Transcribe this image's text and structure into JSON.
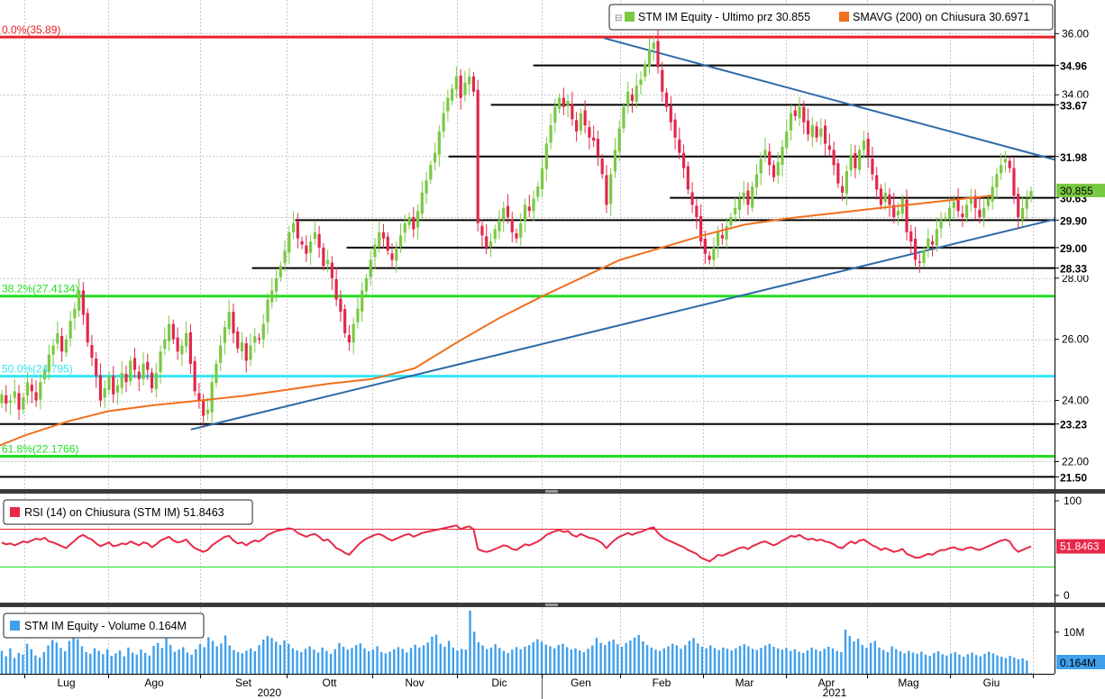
{
  "colors": {
    "up": "#7ac943",
    "down": "#e0284d",
    "sma": "#f07020",
    "trend": "#2c6aa8",
    "rsi": "#e8294a",
    "volume": "#3fa0ee",
    "fib_red": "#e8202a",
    "fib_green": "#22dd22",
    "fib_cyan": "#33e6f0",
    "grid": "#c8c8c8"
  },
  "chart_data": [
    {
      "type": "candlestick",
      "legend": [
        {
          "label": "STM IM Equity - Ultimo prz 30.855",
          "color": "#7ac943"
        },
        {
          "label": "SMAVG (200)  on Chiusura 30.6971",
          "color": "#f07020"
        }
      ],
      "ylim": [
        21.1,
        37.1
      ],
      "y_ticks": [
        22.0,
        24.0,
        26.0,
        28.0,
        30.0,
        32.0,
        34.0,
        36.0
      ],
      "last_price": 30.855,
      "last_price_label": "30.855",
      "fib_levels": [
        {
          "label": "0.0%(35.89)",
          "value": 35.89,
          "color": "#e8202a"
        },
        {
          "label": "38.2%(27.4134)",
          "value": 27.4134,
          "color": "#22dd22"
        },
        {
          "label": "50.0%(24.795)",
          "value": 24.795,
          "color": "#33e6f0"
        },
        {
          "label": "61.8%(22.1766)",
          "value": 22.1766,
          "color": "#22dd22"
        }
      ],
      "support_resistance": [
        {
          "label": "34.96",
          "value": 34.96,
          "start_month": 5.9
        },
        {
          "label": "33.67",
          "value": 33.67,
          "start_month": 5.4
        },
        {
          "label": "31.98",
          "value": 31.98,
          "start_month": 4.9
        },
        {
          "label": "30.63",
          "value": 30.63,
          "start_month": 7.6
        },
        {
          "label": "29.90",
          "value": 29.9,
          "start_month": 3.1
        },
        {
          "label": "29.00",
          "value": 29.0,
          "start_month": 3.7
        },
        {
          "label": "28.33",
          "value": 28.33,
          "start_month": 2.6
        },
        {
          "label": "23.23",
          "value": 23.23,
          "start_month": -0.5
        },
        {
          "label": "21.50",
          "value": 21.5,
          "start_month": -0.8
        }
      ],
      "trendlines": [
        {
          "points": [
            [
              1.9,
              23.05
            ],
            [
              12.3,
              29.95
            ]
          ]
        },
        {
          "points": [
            [
              6.8,
              35.85
            ],
            [
              12.3,
              31.85
            ]
          ]
        }
      ],
      "close": [
        24.2,
        23.9,
        24.0,
        24.3,
        23.7,
        24.1,
        24.6,
        24.3,
        24.0,
        24.6,
        25.0,
        25.5,
        25.8,
        26.2,
        25.6,
        26.0,
        26.6,
        27.0,
        27.6,
        26.8,
        25.9,
        25.4,
        24.8,
        24.0,
        24.4,
        24.8,
        24.2,
        24.5,
        24.9,
        24.6,
        25.3,
        25.0,
        24.7,
        25.2,
        25.0,
        24.4,
        24.9,
        25.6,
        26.0,
        26.5,
        26.0,
        25.6,
        25.8,
        26.2,
        25.2,
        24.3,
        24.0,
        23.5,
        23.7,
        24.6,
        25.2,
        25.8,
        26.4,
        26.9,
        26.2,
        25.7,
        25.9,
        25.3,
        25.8,
        26.1,
        26.0,
        26.5,
        27.3,
        27.6,
        28.0,
        28.4,
        28.9,
        29.5,
        29.8,
        29.3,
        29.1,
        28.8,
        29.2,
        29.5,
        29.0,
        28.4,
        28.6,
        28.0,
        27.3,
        26.9,
        26.2,
        25.9,
        26.5,
        27.0,
        27.6,
        28.0,
        28.6,
        29.1,
        29.5,
        29.3,
        28.9,
        28.6,
        29.0,
        29.4,
        29.8,
        30.0,
        29.6,
        30.2,
        30.8,
        31.2,
        31.7,
        32.1,
        32.8,
        33.4,
        33.9,
        34.2,
        34.6,
        33.9,
        34.4,
        34.6,
        34.1,
        29.8,
        29.4,
        29.0,
        29.2,
        29.6,
        29.9,
        30.3,
        30.0,
        29.5,
        29.3,
        29.8,
        30.4,
        30.2,
        30.6,
        31.0,
        31.6,
        32.4,
        33.0,
        33.6,
        33.9,
        33.6,
        33.8,
        33.2,
        32.8,
        33.4,
        33.0,
        32.6,
        32.5,
        32.0,
        31.4,
        30.4,
        31.4,
        32.2,
        32.9,
        33.6,
        34.1,
        33.8,
        34.3,
        34.5,
        35.0,
        35.5,
        35.7,
        34.9,
        34.1,
        33.6,
        33.1,
        32.6,
        32.1,
        31.6,
        30.9,
        30.4,
        30.0,
        29.2,
        28.8,
        28.6,
        29.0,
        29.5,
        29.3,
        29.7,
        30.0,
        30.3,
        30.6,
        30.8,
        30.4,
        31.0,
        31.4,
        31.9,
        32.2,
        31.7,
        31.3,
        31.8,
        32.3,
        32.8,
        33.4,
        33.3,
        33.6,
        33.1,
        32.7,
        33.0,
        32.6,
        32.9,
        32.4,
        32.2,
        31.7,
        31.1,
        30.8,
        31.5,
        32.0,
        31.6,
        32.2,
        32.5,
        32.0,
        31.4,
        30.9,
        30.4,
        30.8,
        30.4,
        30.0,
        30.2,
        30.6,
        29.5,
        29.2,
        28.6,
        28.5,
        28.9,
        29.3,
        29.1,
        29.6,
        29.9,
        30.0,
        30.3,
        30.5,
        30.2,
        30.0,
        30.4,
        30.6,
        30.3,
        30.0,
        30.3,
        30.6,
        31.0,
        31.4,
        31.7,
        31.9,
        31.6,
        30.7,
        30.0,
        30.3,
        30.6,
        30.855
      ],
      "sma200": [
        [
          -0.5,
          22.3
        ],
        [
          0,
          22.85
        ],
        [
          0.5,
          23.3
        ],
        [
          1,
          23.65
        ],
        [
          1.5,
          23.85
        ],
        [
          2,
          24.0
        ],
        [
          2.5,
          24.15
        ],
        [
          3,
          24.35
        ],
        [
          3.5,
          24.55
        ],
        [
          4,
          24.7
        ],
        [
          4.5,
          25.05
        ],
        [
          5,
          25.9
        ],
        [
          5.5,
          26.7
        ],
        [
          6,
          27.4
        ],
        [
          6.5,
          28.0
        ],
        [
          7,
          28.6
        ],
        [
          7.5,
          29.0
        ],
        [
          8,
          29.4
        ],
        [
          8.5,
          29.75
        ],
        [
          9,
          29.95
        ],
        [
          9.5,
          30.1
        ],
        [
          10,
          30.25
        ],
        [
          10.5,
          30.4
        ],
        [
          11,
          30.55
        ],
        [
          11.5,
          30.6972
        ]
      ],
      "month_labels": [
        "Lug",
        "Ago",
        "Set",
        "Ott",
        "Nov",
        "Dic",
        "Gen",
        "Feb",
        "Mar",
        "Apr",
        "Mag",
        "Giu"
      ],
      "year_labels": [
        {
          "label": "2020",
          "month": 2.8
        },
        {
          "label": "2021",
          "month": 9.6
        }
      ]
    },
    {
      "type": "line",
      "legend": [
        {
          "label": "RSI (14)  on Chiusura (STM IM) 51.8463",
          "color": "#e8294a"
        }
      ],
      "ylim": [
        0,
        100
      ],
      "y_ticks": [
        0,
        100
      ],
      "upper_band": 70,
      "lower_band": 30,
      "last_value_label": "51.8463",
      "values": [
        56,
        54,
        55,
        53,
        55,
        57,
        56,
        58,
        60,
        59,
        61,
        57,
        56,
        54,
        52,
        50,
        54,
        58,
        62,
        64,
        61,
        59,
        55,
        52,
        54,
        56,
        52,
        53,
        55,
        54,
        57,
        55,
        53,
        56,
        55,
        51,
        54,
        58,
        60,
        62,
        58,
        56,
        57,
        59,
        54,
        50,
        48,
        46,
        48,
        53,
        56,
        59,
        62,
        63,
        58,
        55,
        56,
        53,
        56,
        58,
        57,
        60,
        64,
        66,
        68,
        69,
        70,
        71,
        70,
        66,
        64,
        62,
        64,
        65,
        62,
        58,
        59,
        55,
        50,
        48,
        45,
        43,
        48,
        53,
        57,
        60,
        62,
        64,
        65,
        63,
        60,
        58,
        60,
        62,
        64,
        65,
        62,
        64,
        66,
        67,
        68,
        69,
        70,
        71,
        72,
        73,
        74,
        70,
        72,
        73,
        70,
        49,
        47,
        46,
        47,
        49,
        51,
        53,
        52,
        49,
        48,
        51,
        54,
        53,
        55,
        57,
        60,
        64,
        66,
        68,
        69,
        67,
        68,
        64,
        62,
        65,
        63,
        61,
        60,
        58,
        55,
        50,
        55,
        59,
        62,
        64,
        66,
        64,
        66,
        67,
        69,
        71,
        72,
        66,
        62,
        59,
        57,
        55,
        53,
        51,
        48,
        46,
        44,
        40,
        38,
        36,
        39,
        43,
        42,
        44,
        46,
        48,
        50,
        51,
        49,
        52,
        54,
        56,
        57,
        55,
        53,
        55,
        58,
        60,
        63,
        62,
        64,
        61,
        59,
        60,
        58,
        59,
        57,
        56,
        54,
        51,
        50,
        54,
        57,
        55,
        58,
        59,
        56,
        53,
        51,
        48,
        50,
        48,
        46,
        47,
        49,
        44,
        42,
        40,
        40,
        42,
        44,
        43,
        46,
        48,
        48,
        50,
        51,
        49,
        48,
        50,
        51,
        49,
        48,
        50,
        52,
        54,
        56,
        58,
        59,
        57,
        50,
        46,
        48,
        50,
        51.8463
      ]
    },
    {
      "type": "bar",
      "legend": [
        {
          "label": "STM IM Equity - Volume 0.164M",
          "color": "#3fa0ee"
        }
      ],
      "ylim": [
        0,
        16
      ],
      "y_ticks": [
        10
      ],
      "y_tick_labels": [
        "10M"
      ],
      "last_value_label": "0.164M",
      "values": [
        5.5,
        4.2,
        6.1,
        3.8,
        5.0,
        4.6,
        7.2,
        5.9,
        4.4,
        3.9,
        5.2,
        6.8,
        8.1,
        7.5,
        6.2,
        5.4,
        7.9,
        9.0,
        8.3,
        6.6,
        5.2,
        4.8,
        6.1,
        5.5,
        4.7,
        5.9,
        4.3,
        4.9,
        5.6,
        4.2,
        6.3,
        5.1,
        4.6,
        5.8,
        5.0,
        4.4,
        6.7,
        7.4,
        6.2,
        8.5,
        6.9,
        5.3,
        5.8,
        6.4,
        5.1,
        4.6,
        5.9,
        7.1,
        6.4,
        8.8,
        7.9,
        6.6,
        7.3,
        9.2,
        6.8,
        5.7,
        5.2,
        4.9,
        5.5,
        6.1,
        5.4,
        6.9,
        8.2,
        9.1,
        8.6,
        7.7,
        6.9,
        8.0,
        7.2,
        6.1,
        5.6,
        5.2,
        6.0,
        6.6,
        5.8,
        5.1,
        6.3,
        5.5,
        4.8,
        5.9,
        7.4,
        6.5,
        5.8,
        6.2,
        6.9,
        7.3,
        6.1,
        5.4,
        5.8,
        6.6,
        5.2,
        4.9,
        5.3,
        5.9,
        6.4,
        6.0,
        5.1,
        6.2,
        7.0,
        6.3,
        6.8,
        7.5,
        8.9,
        9.4,
        7.2,
        6.5,
        7.9,
        6.3,
        5.6,
        6.0,
        5.8,
        15.2,
        10.1,
        7.6,
        6.8,
        5.9,
        6.3,
        7.1,
        6.2,
        5.5,
        5.0,
        5.8,
        6.4,
        5.9,
        6.5,
        6.9,
        7.6,
        8.3,
        7.7,
        7.0,
        6.6,
        6.1,
        6.9,
        7.2,
        6.4,
        5.8,
        6.1,
        5.6,
        5.2,
        6.0,
        6.8,
        8.6,
        7.4,
        6.9,
        7.8,
        8.2,
        7.1,
        6.5,
        7.4,
        8.0,
        8.7,
        9.3,
        7.8,
        6.9,
        6.3,
        5.8,
        5.5,
        6.1,
        6.6,
        7.2,
        6.8,
        6.0,
        6.9,
        7.9,
        8.6,
        7.3,
        6.5,
        6.1,
        6.8,
        6.2,
        5.7,
        6.3,
        6.0,
        5.6,
        6.1,
        6.7,
        7.1,
        6.6,
        6.0,
        5.7,
        6.2,
        6.8,
        7.2,
        6.5,
        6.1,
        5.8,
        6.2,
        5.5,
        5.9,
        5.3,
        5.0,
        5.6,
        6.3,
        5.8,
        5.4,
        6.0,
        6.5,
        6.1,
        5.5,
        5.2,
        10.6,
        9.1,
        7.8,
        8.4,
        6.9,
        6.2,
        7.4,
        7.9,
        6.3,
        5.7,
        5.2,
        6.6,
        5.9,
        5.4,
        4.9,
        5.5,
        5.1,
        4.8,
        5.3,
        4.6,
        4.3,
        5.0,
        5.4,
        4.7,
        4.4,
        4.9,
        5.2,
        4.6,
        4.1,
        4.7,
        5.1,
        4.5,
        4.2,
        4.8,
        5.3,
        4.9,
        4.4,
        4.1,
        3.8,
        4.3,
        3.9,
        3.5,
        3.7,
        3.2,
        0.164
      ]
    }
  ]
}
